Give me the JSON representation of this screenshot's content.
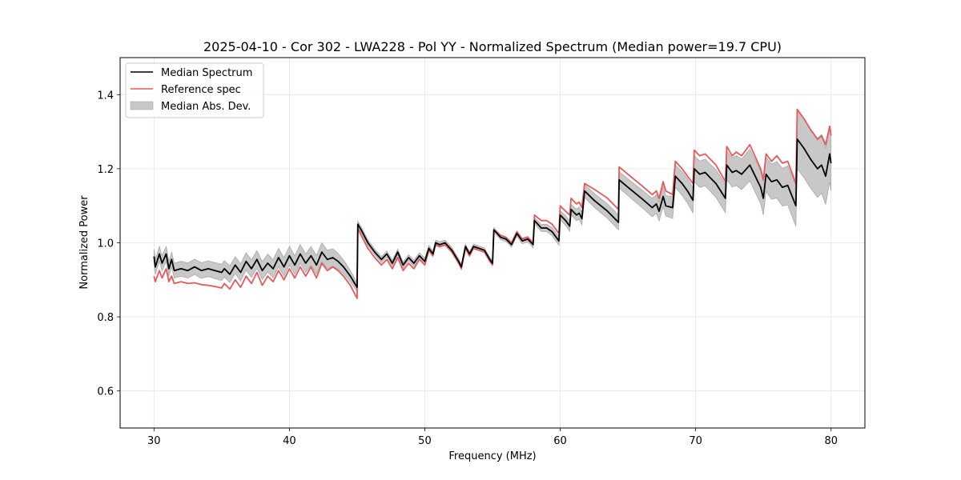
{
  "chart_data": {
    "type": "line",
    "title": "2025-04-10 - Cor 302 - LWA228 - Pol YY - Normalized Spectrum (Median power=19.7 CPU)",
    "xlabel": "Frequency (MHz)",
    "ylabel": "Normalized Power",
    "xlim": [
      27.5,
      82.5
    ],
    "ylim": [
      0.5,
      1.5
    ],
    "xticks": [
      30,
      40,
      50,
      60,
      70,
      80
    ],
    "xtick_labels": [
      "30",
      "40",
      "50",
      "60",
      "70",
      "80"
    ],
    "yticks": [
      0.6,
      0.8,
      1.0,
      1.2,
      1.4
    ],
    "ytick_labels": [
      "0.6",
      "0.8",
      "1.0",
      "1.2",
      "1.4"
    ],
    "grid": true,
    "legend": {
      "placement": "top-left",
      "entries": [
        {
          "label": "Median Spectrum",
          "kind": "line",
          "color": "#000000"
        },
        {
          "label": "Reference spec",
          "kind": "line",
          "color": "#e8585a"
        },
        {
          "label": "Median Abs. Dev.",
          "kind": "band",
          "color": "#c8c8c8"
        }
      ]
    },
    "series": [
      {
        "name": "Median Spectrum",
        "color": "#000000",
        "x": [
          30.0,
          30.1,
          30.4,
          30.6,
          30.9,
          31.1,
          31.3,
          31.5,
          32.0,
          32.5,
          33.0,
          33.5,
          34.0,
          34.5,
          35.0,
          35.2,
          35.6,
          36.0,
          36.4,
          36.8,
          37.2,
          37.6,
          38.0,
          38.4,
          38.8,
          39.2,
          39.6,
          40.0,
          40.4,
          40.8,
          41.2,
          41.6,
          42.0,
          42.4,
          42.8,
          43.2,
          43.6,
          44.0,
          44.5,
          45.0,
          45.05,
          45.3,
          45.8,
          46.3,
          46.8,
          47.2,
          47.6,
          48.0,
          48.4,
          48.8,
          49.2,
          49.6,
          50.0,
          50.3,
          50.6,
          50.8,
          51.1,
          51.5,
          52.0,
          52.5,
          52.7,
          53.0,
          53.3,
          53.6,
          54.0,
          54.4,
          54.8,
          55.0,
          55.1,
          55.6,
          56.0,
          56.4,
          56.8,
          57.2,
          57.6,
          58.0,
          58.1,
          58.6,
          59.0,
          59.4,
          59.9,
          60.0,
          60.4,
          60.7,
          60.8,
          61.2,
          61.4,
          61.6,
          61.8,
          62.5,
          63.5,
          64.3,
          64.35,
          65.0,
          66.0,
          66.8,
          67.1,
          67.3,
          67.6,
          67.8,
          68.3,
          68.5,
          69.0,
          69.4,
          69.8,
          69.9,
          70.3,
          70.7,
          71.1,
          71.5,
          72.2,
          72.3,
          72.7,
          73.0,
          73.4,
          74.0,
          74.8,
          75.0,
          75.2,
          75.6,
          76.0,
          76.4,
          76.8,
          77.4,
          77.5,
          78.0,
          78.5,
          79.0,
          79.3,
          79.6,
          79.9,
          80.0
        ],
        "values": [
          0.963,
          0.935,
          0.97,
          0.945,
          0.97,
          0.93,
          0.955,
          0.925,
          0.93,
          0.925,
          0.935,
          0.925,
          0.93,
          0.925,
          0.92,
          0.93,
          0.915,
          0.94,
          0.92,
          0.95,
          0.93,
          0.955,
          0.925,
          0.945,
          0.93,
          0.96,
          0.935,
          0.965,
          0.94,
          0.97,
          0.945,
          0.965,
          0.94,
          0.975,
          0.955,
          0.96,
          0.95,
          0.935,
          0.91,
          0.88,
          1.05,
          1.035,
          1.0,
          0.975,
          0.955,
          0.97,
          0.945,
          0.975,
          0.94,
          0.96,
          0.945,
          0.965,
          0.95,
          0.985,
          0.97,
          1.0,
          0.995,
          1.0,
          0.98,
          0.95,
          0.935,
          0.99,
          0.97,
          0.99,
          0.985,
          0.98,
          0.955,
          0.945,
          1.035,
          1.015,
          1.01,
          0.995,
          1.025,
          1.005,
          1.01,
          0.995,
          1.06,
          1.04,
          1.04,
          1.03,
          1.005,
          1.075,
          1.06,
          1.045,
          1.09,
          1.075,
          1.08,
          1.065,
          1.14,
          1.115,
          1.085,
          1.055,
          1.17,
          1.15,
          1.12,
          1.095,
          1.105,
          1.085,
          1.125,
          1.1,
          1.095,
          1.18,
          1.16,
          1.14,
          1.115,
          1.2,
          1.185,
          1.19,
          1.175,
          1.16,
          1.12,
          1.21,
          1.19,
          1.195,
          1.185,
          1.21,
          1.15,
          1.12,
          1.185,
          1.165,
          1.17,
          1.15,
          1.155,
          1.1,
          1.28,
          1.255,
          1.225,
          1.2,
          1.21,
          1.18,
          1.24,
          1.215
        ]
      },
      {
        "name": "Reference spec",
        "color": "#e8585a",
        "x": [
          30.0,
          30.1,
          30.4,
          30.6,
          30.9,
          31.1,
          31.3,
          31.5,
          32.0,
          32.5,
          33.0,
          33.5,
          34.0,
          34.5,
          35.0,
          35.2,
          35.6,
          36.0,
          36.4,
          36.8,
          37.2,
          37.6,
          38.0,
          38.4,
          38.8,
          39.2,
          39.6,
          40.0,
          40.4,
          40.8,
          41.2,
          41.6,
          42.0,
          42.4,
          42.8,
          43.2,
          43.6,
          44.0,
          44.5,
          45.0,
          45.05,
          45.3,
          45.8,
          46.3,
          46.8,
          47.2,
          47.6,
          48.0,
          48.4,
          48.8,
          49.2,
          49.6,
          50.0,
          50.3,
          50.6,
          50.8,
          51.1,
          51.5,
          52.0,
          52.5,
          52.7,
          53.0,
          53.3,
          53.6,
          54.0,
          54.4,
          54.8,
          55.0,
          55.1,
          55.6,
          56.0,
          56.4,
          56.8,
          57.2,
          57.6,
          58.0,
          58.1,
          58.6,
          59.0,
          59.4,
          59.9,
          60.0,
          60.4,
          60.7,
          60.8,
          61.2,
          61.4,
          61.6,
          61.8,
          62.5,
          63.5,
          64.3,
          64.35,
          65.0,
          66.0,
          66.8,
          67.1,
          67.3,
          67.6,
          67.8,
          68.3,
          68.5,
          69.0,
          69.4,
          69.8,
          69.9,
          70.3,
          70.7,
          71.1,
          71.5,
          72.2,
          72.3,
          72.7,
          73.0,
          73.4,
          74.0,
          74.8,
          75.0,
          75.2,
          75.6,
          76.0,
          76.4,
          76.8,
          77.4,
          77.5,
          78.0,
          78.5,
          79.0,
          79.3,
          79.6,
          79.9,
          80.0
        ],
        "values": [
          0.91,
          0.895,
          0.925,
          0.905,
          0.93,
          0.895,
          0.91,
          0.89,
          0.895,
          0.89,
          0.892,
          0.887,
          0.885,
          0.882,
          0.878,
          0.89,
          0.875,
          0.9,
          0.88,
          0.91,
          0.89,
          0.92,
          0.885,
          0.91,
          0.895,
          0.925,
          0.9,
          0.93,
          0.905,
          0.935,
          0.91,
          0.935,
          0.905,
          0.945,
          0.925,
          0.935,
          0.925,
          0.91,
          0.885,
          0.85,
          1.04,
          1.02,
          0.985,
          0.96,
          0.94,
          0.955,
          0.93,
          0.96,
          0.925,
          0.945,
          0.93,
          0.955,
          0.94,
          0.98,
          0.965,
          0.995,
          0.99,
          0.995,
          0.975,
          0.945,
          0.93,
          0.985,
          0.965,
          0.985,
          0.98,
          0.975,
          0.95,
          0.94,
          1.035,
          1.02,
          1.015,
          1.0,
          1.03,
          1.01,
          1.015,
          1.0,
          1.075,
          1.06,
          1.06,
          1.05,
          1.025,
          1.1,
          1.085,
          1.075,
          1.12,
          1.105,
          1.11,
          1.095,
          1.16,
          1.145,
          1.12,
          1.09,
          1.205,
          1.185,
          1.155,
          1.13,
          1.14,
          1.12,
          1.165,
          1.14,
          1.13,
          1.22,
          1.2,
          1.18,
          1.16,
          1.25,
          1.235,
          1.24,
          1.225,
          1.21,
          1.165,
          1.26,
          1.235,
          1.245,
          1.235,
          1.265,
          1.2,
          1.17,
          1.24,
          1.22,
          1.235,
          1.215,
          1.22,
          1.16,
          1.36,
          1.335,
          1.305,
          1.28,
          1.29,
          1.265,
          1.315,
          1.29
        ]
      }
    ],
    "band": {
      "name": "Median Abs. Dev.",
      "color": "#c8c8c8",
      "note": "band spans median ± MAD",
      "x": [
        30.0,
        32.0,
        35.0,
        38.0,
        40.0,
        43.0,
        45.0,
        45.05,
        50.0,
        55.0,
        58.0,
        60.0,
        62.0,
        64.3,
        64.35,
        67.0,
        70.0,
        72.0,
        75.0,
        77.4,
        77.5,
        80.0
      ],
      "mad": [
        0.02,
        0.02,
        0.022,
        0.024,
        0.025,
        0.025,
        0.012,
        0.008,
        0.008,
        0.006,
        0.008,
        0.012,
        0.018,
        0.02,
        0.022,
        0.025,
        0.035,
        0.038,
        0.045,
        0.055,
        0.08,
        0.075
      ]
    }
  }
}
